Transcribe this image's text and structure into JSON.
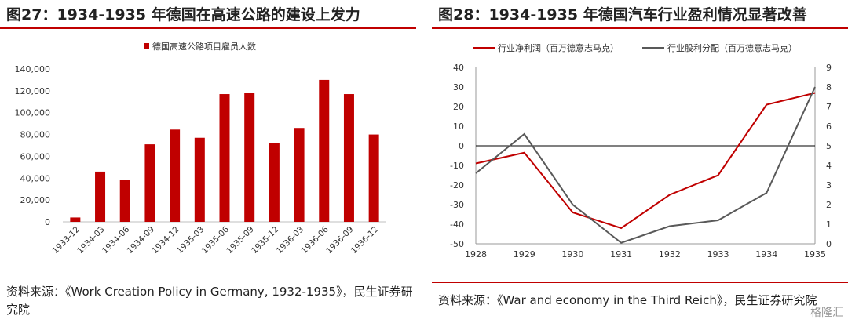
{
  "left_panel": {
    "title": "图27：1934-1935 年德国在高速公路的建设上发力",
    "source": "资料来源：《Work Creation Policy in Germany, 1932-1935》，民生证券研究院"
  },
  "right_panel": {
    "title": "图28：1934-1935 年德国汽车行业盈利情况显著改善",
    "source": "资料来源：《War and economy in the Third Reich》，民生证券研究院"
  },
  "watermark": "格隆汇",
  "colors": {
    "red": "#c00000",
    "gray": "#595959"
  },
  "chart_data": [
    {
      "type": "bar",
      "legend": [
        "德国高速公路项目雇员人数"
      ],
      "categories": [
        "1933-12",
        "1934-03",
        "1934-06",
        "1934-09",
        "1934-12",
        "1935-03",
        "1935-06",
        "1935-09",
        "1935-12",
        "1936-03",
        "1936-06",
        "1936-09",
        "1936-12"
      ],
      "series": [
        {
          "name": "德国高速公路项目雇员人数",
          "values": [
            4000,
            46000,
            38500,
            71000,
            84500,
            77000,
            117000,
            118000,
            72000,
            86000,
            130000,
            117000,
            80000
          ]
        }
      ],
      "y_ticks": [
        "0",
        "20,000",
        "40,000",
        "60,000",
        "80,000",
        "100,000",
        "120,000",
        "140,000"
      ],
      "ylim": [
        0,
        140000
      ],
      "legend_position": "top-center",
      "grid": false
    },
    {
      "type": "line",
      "x": [
        "1928",
        "1929",
        "1930",
        "1931",
        "1932",
        "1933",
        "1934",
        "1935"
      ],
      "series": [
        {
          "name": "行业净利润（百万德意志马克）",
          "axis": "left",
          "values": [
            -9,
            -3.5,
            -34,
            -42,
            -25,
            -15,
            21,
            27
          ]
        },
        {
          "name": "行业股利分配（百万德意志马克）",
          "axis": "right",
          "values": [
            3.6,
            5.6,
            2.0,
            0.05,
            0.9,
            1.2,
            2.6,
            8.0
          ]
        }
      ],
      "y_left_ticks": [
        "40",
        "30",
        "20",
        "10",
        "0",
        "-10",
        "-20",
        "-30",
        "-40",
        "-50"
      ],
      "y_right_ticks": [
        "9",
        "8",
        "7",
        "6",
        "5",
        "4",
        "3",
        "2",
        "1",
        "0"
      ],
      "ylim_left": [
        -50,
        40
      ],
      "ylim_right": [
        0,
        9
      ],
      "legend_position": "top",
      "grid": false
    }
  ]
}
